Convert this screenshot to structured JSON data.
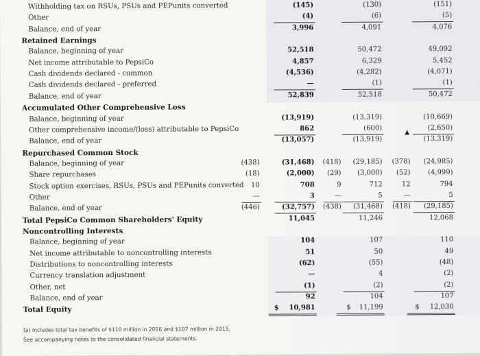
{
  "rows": [
    {
      "label": "Withholding tax on RSUs, PSUs and PEPunits converted",
      "indent": 2,
      "c2016": "(145)",
      "c2015": "(130)",
      "c2014": "(151)"
    },
    {
      "label": "Other",
      "indent": 2,
      "c2016": "(4)",
      "c2015": "(6)",
      "c2014": "(5)"
    },
    {
      "label": "Balance, end of year",
      "indent": 2,
      "c2016": "3,996",
      "c2015": "4,091",
      "c2014": "4,076"
    },
    {
      "label": "Retained Earnings",
      "indent": 1,
      "header": true
    },
    {
      "label": "Balance, beginning of year",
      "indent": 2,
      "c2016": "52,518",
      "c2015": "50,472",
      "c2014": "49,092"
    },
    {
      "label": "Net income attributable to PepsiCo",
      "indent": 2,
      "c2016": "4,857",
      "c2015": "6,329",
      "c2014": "5,452"
    },
    {
      "label": "Cash dividends declared - common",
      "indent": 2,
      "c2016": "(4,536)",
      "c2015": "(4,282)",
      "c2014": "(4,071)"
    },
    {
      "label": "Cash dividends declared - preferred",
      "indent": 2,
      "c2016": "—",
      "c2015": "(1)",
      "c2014": "(1)"
    },
    {
      "label": "Balance, end of year",
      "indent": 2,
      "c2016": "52,839",
      "c2015": "52,518",
      "c2014": "50,472"
    },
    {
      "label": "Accumulated Other Comprehensive Loss",
      "indent": 1,
      "header": true
    },
    {
      "label": "Balance, beginning of year",
      "indent": 2,
      "c2016": "(13,919)",
      "c2015": "(13,319)",
      "c2014": "(10,669)"
    },
    {
      "label": "Other comprehensive income/(loss) attributable to PepsiCo",
      "indent": 2,
      "c2016": "862",
      "c2015": "(600)",
      "c2014": "(2,650)"
    },
    {
      "label": "Balance, end of year",
      "indent": 2,
      "c2016": "(13,057)",
      "c2015": "(13,919)",
      "c2014": "(13,319)"
    },
    {
      "label": "Repurchased Common Stock",
      "indent": 1,
      "header": true
    },
    {
      "label": "Balance, beginning of year",
      "indent": 2,
      "s2016": "(438)",
      "c2016": "(31,468)",
      "s2015": "(418)",
      "c2015": "(29,185)",
      "s2014": "(378)",
      "c2014": "(24,985)"
    },
    {
      "label": "Share repurchases",
      "indent": 2,
      "s2016": "(18)",
      "c2016": "(2,000)",
      "s2015": "(29)",
      "c2015": "(3,000)",
      "s2014": "(52)",
      "c2014": "(4,999)"
    },
    {
      "label": "Stock option exercises, RSUs, PSUs and PEPunits converted",
      "indent": 2,
      "s2016": "10",
      "c2016": "708",
      "s2015": "9",
      "c2015": "712",
      "s2014": "12",
      "c2014": "794"
    },
    {
      "label": "Other",
      "indent": 2,
      "s2016": "—",
      "c2016": "3",
      "s2015": "—",
      "c2015": "5",
      "s2014": "—",
      "c2014": "5"
    },
    {
      "label": "Balance, end of year",
      "indent": 2,
      "s2016": "(446)",
      "c2016": "(32,757)",
      "s2015": "(438)",
      "c2015": "(31,468)",
      "s2014": "(418)",
      "c2014": "(29,185)"
    },
    {
      "label": "Total PepsiCo Common Shareholders' Equity",
      "indent": 1,
      "header": true,
      "c2016": "11,045",
      "c2015": "11,246",
      "c2014": "12,068"
    },
    {
      "label": "Noncontrolling Interests",
      "indent": 1,
      "header": true
    },
    {
      "label": "Balance, beginning of year",
      "indent": 2,
      "c2016": "104",
      "c2015": "107",
      "c2014": "110"
    },
    {
      "label": "Net income attributable to noncontrolling interests",
      "indent": 2,
      "c2016": "51",
      "c2015": "50",
      "c2014": "49"
    },
    {
      "label": "Distributions to noncontrolling interests",
      "indent": 2,
      "c2016": "(62)",
      "c2015": "(55)",
      "c2014": "(48)"
    },
    {
      "label": "Currency translation adjustment",
      "indent": 2,
      "c2016": "—",
      "c2015": "4",
      "c2014": "(2)"
    },
    {
      "label": "Other, net",
      "indent": 2,
      "c2016": "(1)",
      "c2015": "(2)",
      "c2014": "(2)"
    },
    {
      "label": "Balance, end of year",
      "indent": 2,
      "c2016": "92",
      "c2015": "104",
      "c2014": "107"
    },
    {
      "label": "Total Equity",
      "indent": 1,
      "header": true,
      "c2016": "10,981",
      "c2015": "11,199",
      "c2014": "12,030",
      "dollar": "$"
    }
  ],
  "footnotes": [
    "(a) Includes total tax benefits of $110 million in 2016 and $107 million in 2015.",
    "See accompanying notes to the consolidated financial statements."
  ]
}
